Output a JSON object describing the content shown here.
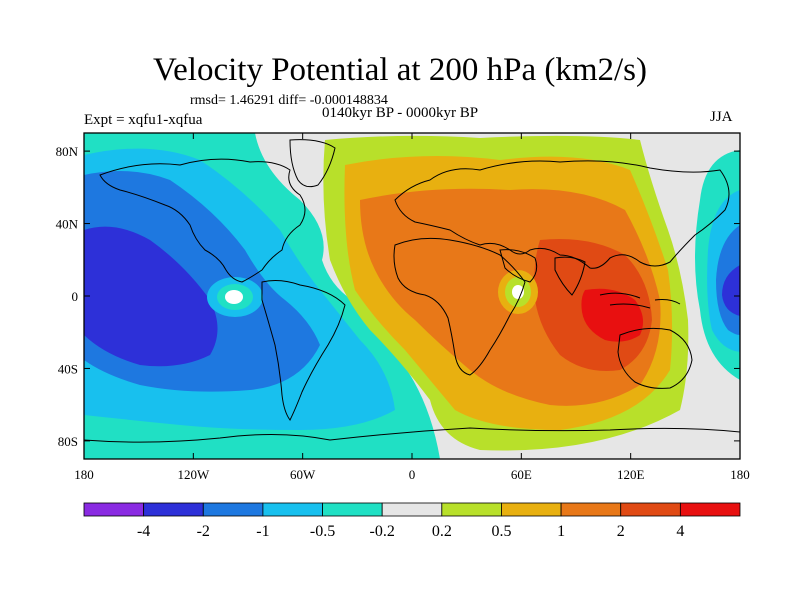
{
  "title": "Velocity Potential at 200 hPa (km2/s)",
  "stats": "rmsd= 1.46291 diff= -0.000148834",
  "experiment": "Expt = xqfu1-xqfua",
  "period": "0140kyr BP - 0000kyr BP",
  "season": "JJA",
  "map": {
    "projection": "cylindrical equidistant",
    "lon_range": [
      -180,
      180
    ],
    "lat_range": [
      -90,
      90
    ],
    "x_ticks": [
      {
        "lon": -180,
        "label": "180"
      },
      {
        "lon": -120,
        "label": "120W"
      },
      {
        "lon": -60,
        "label": "60W"
      },
      {
        "lon": 0,
        "label": "0"
      },
      {
        "lon": 60,
        "label": "60E"
      },
      {
        "lon": 120,
        "label": "120E"
      },
      {
        "lon": 180,
        "label": "180"
      }
    ],
    "y_ticks": [
      {
        "lat": 80,
        "label": "80N"
      },
      {
        "lat": 40,
        "label": "40N"
      },
      {
        "lat": 0,
        "label": "0"
      },
      {
        "lat": -40,
        "label": "40S"
      },
      {
        "lat": -80,
        "label": "80S"
      }
    ]
  },
  "colorbar": {
    "levels": [
      "-4",
      "-2",
      "-1",
      "-0.5",
      "-0.2",
      "0.2",
      "0.5",
      "1",
      "2",
      "4"
    ],
    "colors": [
      "#8a2be2",
      "#2d30d8",
      "#1e78e0",
      "#18c0ee",
      "#20e0c4",
      "#e6e6e6",
      "#b8e02a",
      "#e8b010",
      "#e87818",
      "#e04a14",
      "#e81010"
    ]
  }
}
